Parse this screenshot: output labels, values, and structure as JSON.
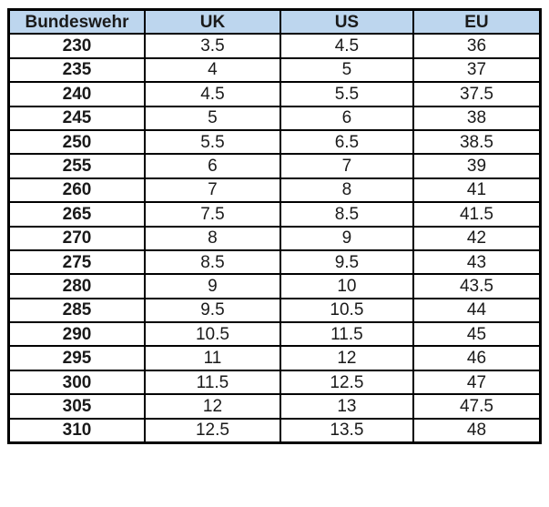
{
  "table": {
    "name": "shoe-size-conversion-table",
    "columns": [
      "Bundeswehr",
      "UK",
      "US",
      "EU"
    ],
    "rows": [
      [
        "230",
        "3.5",
        "4.5",
        "36"
      ],
      [
        "235",
        "4",
        "5",
        "37"
      ],
      [
        "240",
        "4.5",
        "5.5",
        "37.5"
      ],
      [
        "245",
        "5",
        "6",
        "38"
      ],
      [
        "250",
        "5.5",
        "6.5",
        "38.5"
      ],
      [
        "255",
        "6",
        "7",
        "39"
      ],
      [
        "260",
        "7",
        "8",
        "41"
      ],
      [
        "265",
        "7.5",
        "8.5",
        "41.5"
      ],
      [
        "270",
        "8",
        "9",
        "42"
      ],
      [
        "275",
        "8.5",
        "9.5",
        "43"
      ],
      [
        "280",
        "9",
        "10",
        "43.5"
      ],
      [
        "285",
        "9.5",
        "10.5",
        "44"
      ],
      [
        "290",
        "10.5",
        "11.5",
        "45"
      ],
      [
        "295",
        "11",
        "12",
        "46"
      ],
      [
        "300",
        "11.5",
        "12.5",
        "47"
      ],
      [
        "305",
        "12",
        "13",
        "47.5"
      ],
      [
        "310",
        "12.5",
        "13.5",
        "48"
      ]
    ]
  },
  "colors": {
    "header_bg": "#bdd6ee",
    "border": "#000000",
    "text": "#1a1a1a",
    "background": "#ffffff"
  }
}
